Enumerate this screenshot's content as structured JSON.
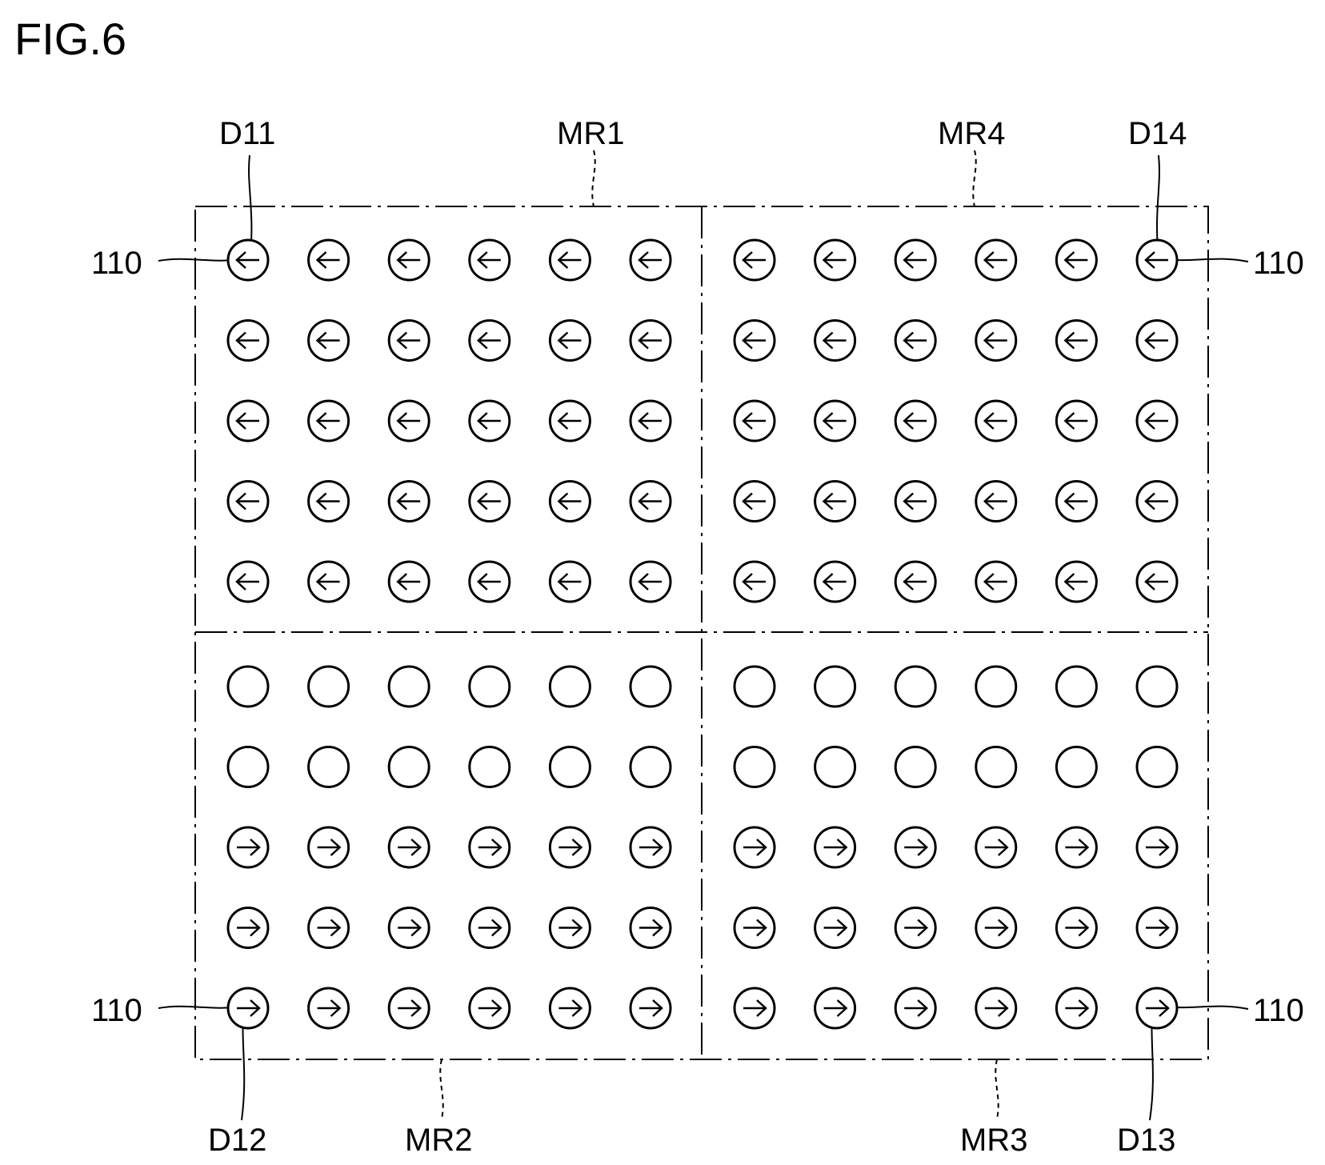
{
  "figure_title": "FIG.6",
  "labels": {
    "D11": "D11",
    "MR1": "MR1",
    "MR4": "MR4",
    "D14": "D14",
    "ref_top_left": "110",
    "ref_top_right": "110",
    "ref_bottom_left": "110",
    "ref_bottom_right": "110",
    "D12": "D12",
    "MR2": "MR2",
    "MR3": "MR3",
    "D13": "D13"
  },
  "grid": {
    "columns": 12,
    "rows": 10,
    "row_directions": [
      "left",
      "left",
      "left",
      "left",
      "left",
      "none",
      "none",
      "right",
      "right",
      "right"
    ]
  }
}
